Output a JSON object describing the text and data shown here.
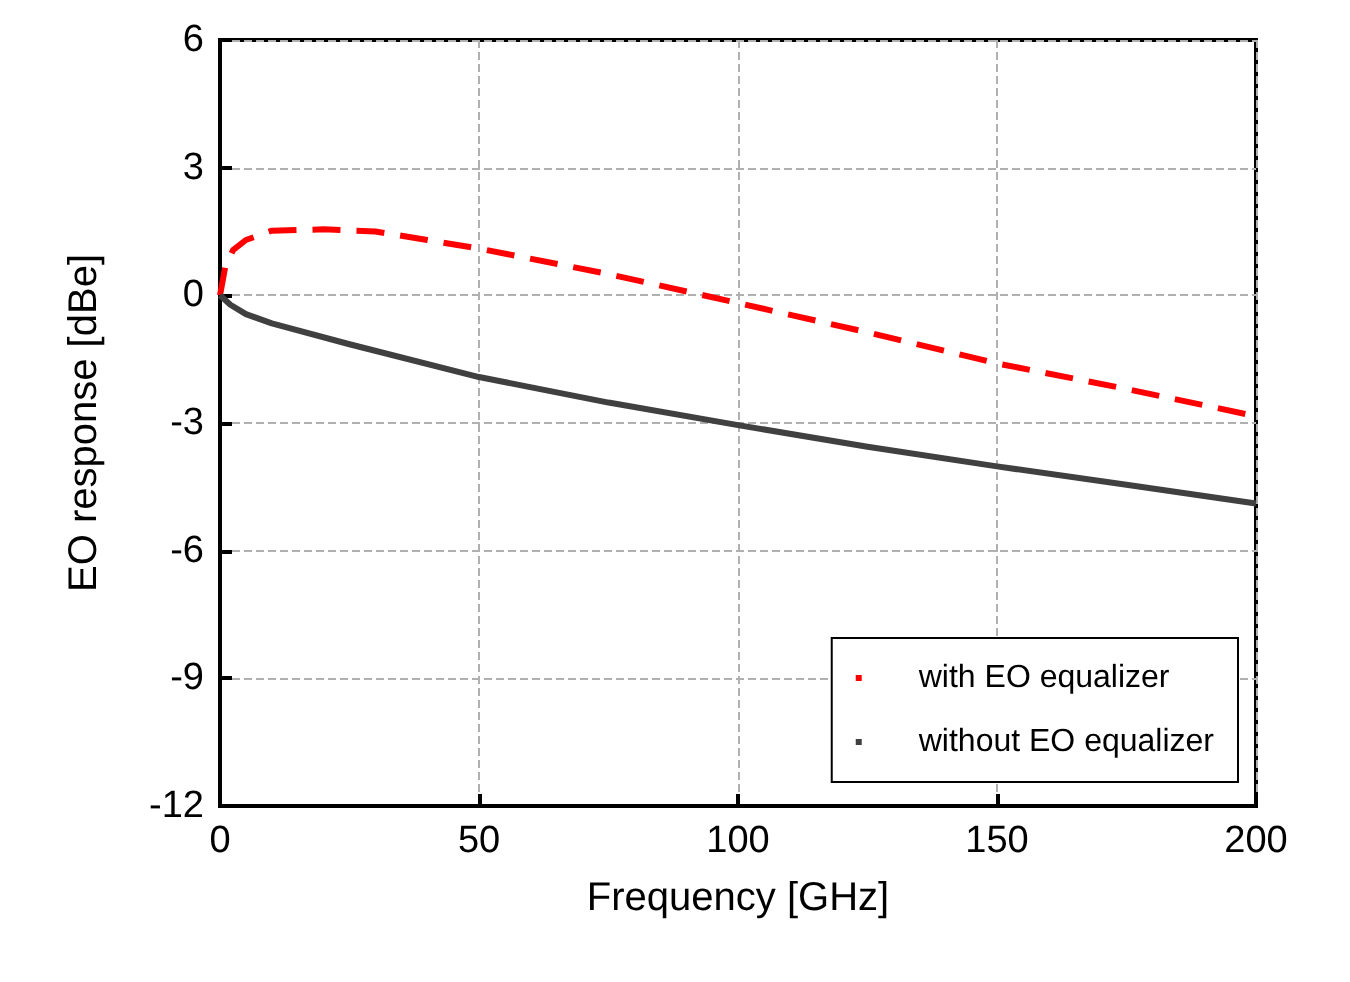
{
  "chart_data": {
    "type": "line",
    "xlabel": "Frequency [GHz]",
    "ylabel": "EO response [dBe]",
    "x": [
      0,
      1,
      2.5,
      5,
      10,
      20,
      30,
      40,
      50,
      75,
      100,
      125,
      150,
      175,
      200
    ],
    "series": [
      {
        "name": "with EO equalizer",
        "color": "#ff0000",
        "line_style": "dashed",
        "values": [
          0,
          0.66,
          1.06,
          1.3,
          1.52,
          1.55,
          1.5,
          1.3,
          1.1,
          0.5,
          -0.18,
          -0.87,
          -1.6,
          -2.2,
          -2.84
        ]
      },
      {
        "name": "without EO equalizer",
        "color": "#404040",
        "line_style": "solid",
        "x": [
          0,
          2,
          5,
          10,
          25,
          50,
          75,
          100,
          125,
          150,
          175,
          200
        ],
        "values": [
          0,
          -0.22,
          -0.44,
          -0.66,
          -1.15,
          -1.92,
          -2.52,
          -3.05,
          -3.56,
          -4.02,
          -4.45,
          -4.89
        ]
      }
    ],
    "xlim": [
      0,
      200
    ],
    "xticks": [
      0,
      50,
      100,
      150,
      200
    ],
    "ylim": [
      -12,
      6
    ],
    "yticks": [
      -12,
      -9,
      -6,
      -3,
      0,
      3,
      6
    ],
    "grid": true,
    "legend": "bottom right",
    "marker": "none"
  }
}
